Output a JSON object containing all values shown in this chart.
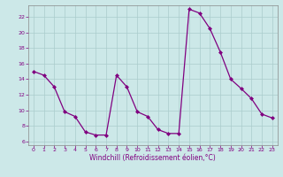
{
  "x": [
    0,
    1,
    2,
    3,
    4,
    5,
    6,
    7,
    8,
    9,
    10,
    11,
    12,
    13,
    14,
    15,
    16,
    17,
    18,
    19,
    20,
    21,
    22,
    23
  ],
  "y": [
    15,
    14.5,
    13,
    9.8,
    9.2,
    7.2,
    6.8,
    6.8,
    14.5,
    13,
    9.8,
    9.2,
    7.5,
    7,
    7,
    23,
    22.5,
    20.5,
    17.5,
    14,
    12.8,
    11.5,
    9.5,
    9
  ],
  "line_color": "#800080",
  "marker": "D",
  "marker_size": 2,
  "bg_color": "#cce8e8",
  "grid_color": "#aacccc",
  "xlabel": "Windchill (Refroidissement éolien,°C)",
  "xlim": [
    -0.5,
    23.5
  ],
  "ylim": [
    5.5,
    23.5
  ],
  "yticks": [
    6,
    8,
    10,
    12,
    14,
    16,
    18,
    20,
    22
  ],
  "xticks": [
    0,
    1,
    2,
    3,
    4,
    5,
    6,
    7,
    8,
    9,
    10,
    11,
    12,
    13,
    14,
    15,
    16,
    17,
    18,
    19,
    20,
    21,
    22,
    23
  ],
  "tick_color": "#800080",
  "label_color": "#800080",
  "spine_color": "#888888"
}
